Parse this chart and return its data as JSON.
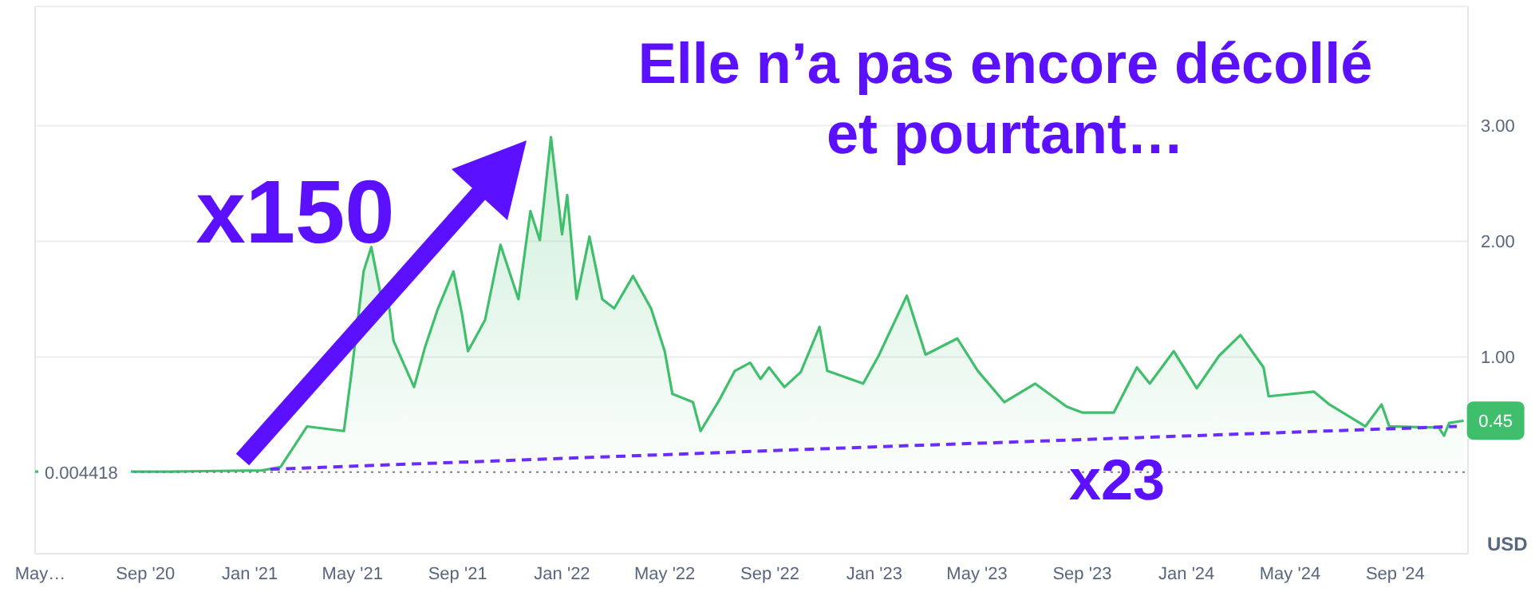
{
  "chart_data": {
    "type": "area",
    "title": "Elle n’a pas encore décollé\net pourtant…",
    "ylabel": "USD",
    "xlim": [
      "2020-04-25",
      "2024-11-25"
    ],
    "xticks": [
      {
        "value": "2020-05-01",
        "label": "May…"
      },
      {
        "value": "2020-09-01",
        "label": "Sep '20"
      },
      {
        "value": "2021-01-01",
        "label": "Jan '21"
      },
      {
        "value": "2021-05-01",
        "label": "May '21"
      },
      {
        "value": "2021-09-01",
        "label": "Sep '21"
      },
      {
        "value": "2022-01-01",
        "label": "Jan '22"
      },
      {
        "value": "2022-05-01",
        "label": "May '22"
      },
      {
        "value": "2022-09-01",
        "label": "Sep '22"
      },
      {
        "value": "2023-01-01",
        "label": "Jan '23"
      },
      {
        "value": "2023-05-01",
        "label": "May '23"
      },
      {
        "value": "2023-09-01",
        "label": "Sep '23"
      },
      {
        "value": "2024-01-01",
        "label": "Jan '24"
      },
      {
        "value": "2024-05-01",
        "label": "May '24"
      },
      {
        "value": "2024-09-01",
        "label": "Sep '24"
      }
    ],
    "ylim": [
      -0.7,
      4.03
    ],
    "yticks": [
      {
        "value": 1,
        "label": "1.00"
      },
      {
        "value": 2,
        "label": "2.00"
      },
      {
        "value": 3,
        "label": "3.00"
      }
    ],
    "grid": "y",
    "series": [
      {
        "color": "#3fbf6b",
        "x": [
          "2020-04-25",
          "2020-10-01",
          "2021-01-15",
          "2021-02-06",
          "2021-03-09",
          "2021-04-21",
          "2021-04-30",
          "2021-05-14",
          "2021-05-23",
          "2021-06-05",
          "2021-06-10",
          "2021-06-18",
          "2021-07-12",
          "2021-07-25",
          "2021-08-09",
          "2021-08-27",
          "2021-09-06",
          "2021-09-13",
          "2021-10-03",
          "2021-10-21",
          "2021-11-11",
          "2021-11-25",
          "2021-12-06",
          "2021-12-19",
          "2022-01-01",
          "2022-01-07",
          "2022-01-18",
          "2022-02-02",
          "2022-02-17",
          "2022-03-03",
          "2022-03-25",
          "2022-04-15",
          "2022-05-01",
          "2022-05-10",
          "2022-06-03",
          "2022-06-12",
          "2022-07-04",
          "2022-07-22",
          "2022-08-09",
          "2022-08-21",
          "2022-08-31",
          "2022-09-18",
          "2022-10-07",
          "2022-10-29",
          "2022-11-07",
          "2022-12-19",
          "2023-01-06",
          "2023-02-08",
          "2023-03-02",
          "2023-04-08",
          "2023-05-02",
          "2023-06-02",
          "2023-07-08",
          "2023-08-14",
          "2023-09-01",
          "2023-10-08",
          "2023-11-04",
          "2023-11-19",
          "2023-12-17",
          "2024-01-13",
          "2024-02-08",
          "2024-03-04",
          "2024-03-31",
          "2024-04-06",
          "2024-05-29",
          "2024-06-16",
          "2024-07-28",
          "2024-08-16",
          "2024-08-25",
          "2024-10-22",
          "2024-10-28",
          "2024-11-03",
          "2024-11-20"
        ],
        "values": [
          0.01,
          0.01,
          0.02,
          0.05,
          0.4,
          0.36,
          0.87,
          1.74,
          1.95,
          1.46,
          1.6,
          1.14,
          0.74,
          1.09,
          1.42,
          1.74,
          1.37,
          1.05,
          1.32,
          1.97,
          1.5,
          2.26,
          2.01,
          2.9,
          2.06,
          2.4,
          1.5,
          2.04,
          1.5,
          1.42,
          1.7,
          1.42,
          1.05,
          0.68,
          0.61,
          0.36,
          0.63,
          0.88,
          0.95,
          0.81,
          0.91,
          0.74,
          0.87,
          1.26,
          0.88,
          0.77,
          1.01,
          1.53,
          1.02,
          1.16,
          0.88,
          0.61,
          0.77,
          0.57,
          0.52,
          0.52,
          0.91,
          0.77,
          1.05,
          0.73,
          1.01,
          1.19,
          0.91,
          0.66,
          0.7,
          0.59,
          0.4,
          0.59,
          0.4,
          0.39,
          0.32,
          0.43,
          0.45
        ]
      },
      {
        "type": "line",
        "color": "#6a2cff",
        "line_style": "dashed",
        "x": [
          "2021-01-25",
          "2022-12-20",
          "2024-11-12"
        ],
        "values": [
          0.03,
          0.22,
          0.4
        ]
      }
    ],
    "ref_lines": [
      {
        "axis": "y",
        "value": 0.004418,
        "label": "0.004418",
        "color": "#7a7f8f",
        "line_style": "dotted"
      }
    ],
    "annotations": [
      "x150",
      "x23",
      {
        "text": "0.45",
        "x": "2024-11-20",
        "y": 0.45
      }
    ]
  }
}
